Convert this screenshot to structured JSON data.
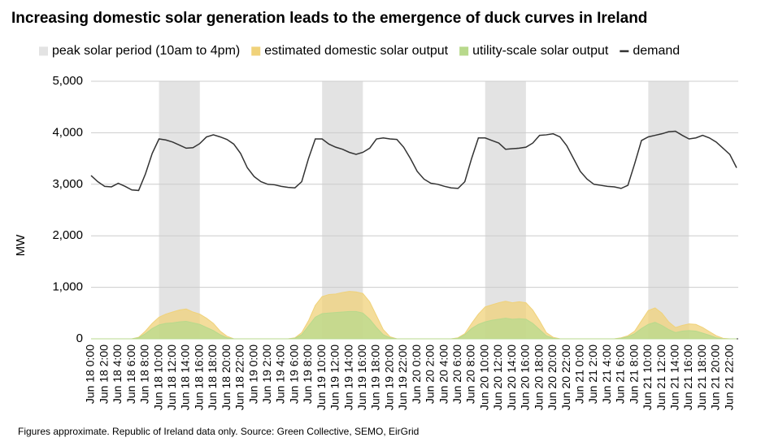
{
  "chart_data": {
    "type": "area",
    "title": "Increasing domestic solar generation leads to the emergence of duck curves in Ireland",
    "y_label": "MW",
    "footnote": "Figures approximate. Republic of Ireland data only. Source: Green Collective, SEMO, EirGrid",
    "categories": [
      "Jun 18 0:00",
      null,
      "Jun 18 2:00",
      null,
      "Jun 18 4:00",
      null,
      "Jun 18 6:00",
      null,
      "Jun 18 8:00",
      null,
      "Jun 18 10:00",
      null,
      "Jun 18 12:00",
      null,
      "Jun 18 14:00",
      null,
      "Jun 18 16:00",
      null,
      "Jun 18 18:00",
      null,
      "Jun 18 20:00",
      null,
      "Jun 18 22:00",
      null,
      "Jun 19 0:00",
      null,
      "Jun 19 2:00",
      null,
      "Jun 19 4:00",
      null,
      "Jun 19 6:00",
      null,
      "Jun 19 8:00",
      null,
      "Jun 19 10:00",
      null,
      "Jun 19 12:00",
      null,
      "Jun 19 14:00",
      null,
      "Jun 19 16:00",
      null,
      "Jun 19 18:00",
      null,
      "Jun 19 20:00",
      null,
      "Jun 19 22:00",
      null,
      "Jun 20 0:00",
      null,
      "Jun 20 2:00",
      null,
      "Jun 20 4:00",
      null,
      "Jun 20 6:00",
      null,
      "Jun 20 8:00",
      null,
      "Jun 20 10:00",
      null,
      "Jun 20 12:00",
      null,
      "Jun 20 14:00",
      null,
      "Jun 20 16:00",
      null,
      "Jun 20 18:00",
      null,
      "Jun 20 20:00",
      null,
      "Jun 20 22:00",
      null,
      "Jun 21 0:00",
      null,
      "Jun 21 2:00",
      null,
      "Jun 21 4:00",
      null,
      "Jun 21 6:00",
      null,
      "Jun 21 8:00",
      null,
      "Jun 21 10:00",
      null,
      "Jun 21 12:00",
      null,
      "Jun 21 14:00",
      null,
      "Jun 21 16:00",
      null,
      "Jun 21 18:00",
      null,
      "Jun 21 20:00",
      null,
      "Jun 21 22:00",
      null
    ],
    "bands": {
      "name": "peak solar period (10am to 4pm)",
      "color": "#e3e3e3",
      "ranges": [
        [
          "Jun 18 10:00",
          "Jun 18 16:00"
        ],
        [
          "Jun 19 10:00",
          "Jun 19 16:00"
        ],
        [
          "Jun 20 10:00",
          "Jun 20 16:00"
        ],
        [
          "Jun 21 10:00",
          "Jun 21 16:00"
        ]
      ]
    },
    "series": [
      {
        "name": "estimated domestic solar output",
        "color": "#f0d27a",
        "type": "area",
        "values": [
          0,
          0,
          0,
          0,
          0,
          0,
          0,
          30,
          150,
          300,
          420,
          480,
          520,
          560,
          580,
          520,
          480,
          400,
          300,
          150,
          50,
          0,
          0,
          0,
          0,
          0,
          0,
          0,
          0,
          0,
          20,
          120,
          350,
          650,
          820,
          860,
          870,
          900,
          920,
          910,
          880,
          720,
          450,
          180,
          40,
          0,
          0,
          0,
          0,
          0,
          0,
          0,
          0,
          0,
          20,
          100,
          300,
          480,
          620,
          660,
          700,
          730,
          700,
          720,
          700,
          560,
          350,
          120,
          30,
          0,
          0,
          0,
          0,
          0,
          0,
          0,
          0,
          0,
          20,
          60,
          150,
          350,
          550,
          600,
          500,
          330,
          220,
          260,
          290,
          280,
          220,
          140,
          60,
          10,
          0,
          0
        ]
      },
      {
        "name": "utility-scale solar output",
        "color": "#b8d98c",
        "type": "area",
        "values": [
          0,
          0,
          0,
          0,
          0,
          0,
          0,
          20,
          100,
          200,
          270,
          300,
          310,
          330,
          340,
          310,
          280,
          220,
          160,
          80,
          20,
          0,
          0,
          0,
          0,
          0,
          0,
          0,
          0,
          0,
          10,
          80,
          250,
          420,
          490,
          500,
          510,
          520,
          530,
          530,
          500,
          380,
          220,
          80,
          20,
          0,
          0,
          0,
          0,
          0,
          0,
          0,
          0,
          0,
          10,
          80,
          200,
          280,
          330,
          360,
          380,
          400,
          380,
          390,
          380,
          300,
          180,
          60,
          10,
          0,
          0,
          0,
          0,
          0,
          0,
          0,
          0,
          0,
          10,
          40,
          100,
          200,
          280,
          320,
          260,
          180,
          120,
          150,
          160,
          150,
          110,
          70,
          20,
          0,
          0,
          0
        ]
      },
      {
        "name": "demand",
        "color": "#333333",
        "type": "line",
        "values": [
          3170,
          3050,
          2960,
          2950,
          3020,
          2960,
          2890,
          2880,
          3200,
          3600,
          3880,
          3860,
          3820,
          3760,
          3700,
          3710,
          3790,
          3920,
          3960,
          3920,
          3870,
          3780,
          3600,
          3320,
          3150,
          3050,
          3000,
          2990,
          2960,
          2940,
          2930,
          3050,
          3500,
          3880,
          3880,
          3780,
          3720,
          3680,
          3620,
          3580,
          3620,
          3700,
          3880,
          3900,
          3880,
          3870,
          3720,
          3500,
          3250,
          3100,
          3020,
          3000,
          2960,
          2930,
          2920,
          3050,
          3500,
          3900,
          3900,
          3850,
          3800,
          3680,
          3690,
          3700,
          3720,
          3800,
          3950,
          3960,
          3980,
          3920,
          3750,
          3500,
          3250,
          3100,
          3000,
          2980,
          2960,
          2950,
          2920,
          2980,
          3400,
          3850,
          3920,
          3950,
          3980,
          4020,
          4030,
          3950,
          3880,
          3900,
          3950,
          3900,
          3820,
          3700,
          3580,
          3320
        ]
      }
    ],
    "ylim": [
      0,
      5000
    ],
    "yticks": [
      0,
      {
        "value": 1000,
        "label": "1,000"
      },
      {
        "value": 2000,
        "label": "2,000"
      },
      {
        "value": 3000,
        "label": "3,000"
      },
      {
        "value": 4000,
        "label": "4,000"
      },
      {
        "value": 5000,
        "label": "5,000"
      }
    ],
    "grid": true
  }
}
